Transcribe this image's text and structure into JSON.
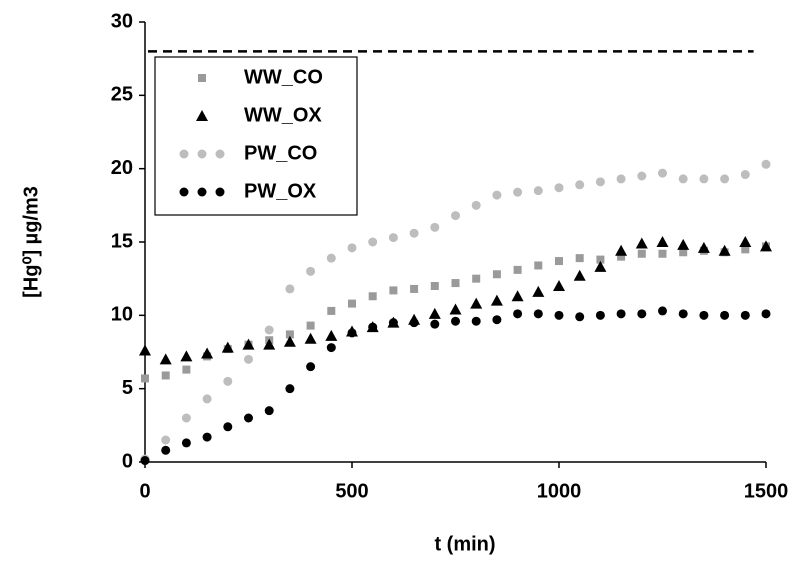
{
  "chart_data": {
    "type": "scatter",
    "x_label": "t (min)",
    "y_label": "[Hg⁰] µg/m3",
    "x": [
      0,
      50,
      100,
      150,
      200,
      250,
      300,
      350,
      400,
      450,
      500,
      550,
      600,
      650,
      700,
      750,
      800,
      850,
      900,
      950,
      1000,
      1050,
      1100,
      1150,
      1200,
      1250,
      1300,
      1350,
      1400,
      1450,
      1500
    ],
    "series": [
      {
        "name": "WW_CO",
        "color": "#9a9a9a",
        "marker": "square",
        "values": [
          5.7,
          5.9,
          6.3,
          7.2,
          7.7,
          8.0,
          8.3,
          8.7,
          9.3,
          10.3,
          10.8,
          11.3,
          11.7,
          11.8,
          12.0,
          12.2,
          12.5,
          12.8,
          13.1,
          13.4,
          13.7,
          13.9,
          13.8,
          14.0,
          14.2,
          14.2,
          14.3,
          14.4,
          14.3,
          14.5,
          14.7
        ]
      },
      {
        "name": "WW_OX",
        "color": "#000000",
        "marker": "triangle",
        "values": [
          7.6,
          7.0,
          7.2,
          7.4,
          7.8,
          8.0,
          8.0,
          8.2,
          8.4,
          8.6,
          8.9,
          9.2,
          9.5,
          9.7,
          10.1,
          10.4,
          10.8,
          11.0,
          11.3,
          11.6,
          12.0,
          12.7,
          13.3,
          14.4,
          14.9,
          15.0,
          14.8,
          14.6,
          14.4,
          15.0,
          14.7
        ]
      },
      {
        "name": "PW_CO",
        "color": "#bdbdbd",
        "marker": "circle",
        "values": [
          0.2,
          1.5,
          3.0,
          4.3,
          5.5,
          7.0,
          9.0,
          11.8,
          13.0,
          13.9,
          14.6,
          15.0,
          15.3,
          15.6,
          16.0,
          16.8,
          17.5,
          18.2,
          18.4,
          18.5,
          18.7,
          18.9,
          19.1,
          19.3,
          19.5,
          19.7,
          19.3,
          19.3,
          19.3,
          19.6,
          20.3
        ]
      },
      {
        "name": "PW_OX",
        "color": "#000000",
        "marker": "circle",
        "values": [
          0.1,
          0.8,
          1.3,
          1.7,
          2.4,
          3.0,
          3.5,
          5.0,
          6.5,
          7.8,
          8.8,
          9.2,
          9.5,
          9.5,
          9.4,
          9.6,
          9.6,
          9.7,
          10.1,
          10.1,
          10.0,
          9.9,
          10.0,
          10.1,
          10.1,
          10.3,
          10.1,
          10.0,
          10.0,
          10.0,
          10.1
        ]
      }
    ],
    "reference_line": {
      "y": 28,
      "x": [
        0,
        1470
      ],
      "color": "#000000",
      "dashed": true
    },
    "xlim": [
      0,
      1500
    ],
    "xticks": [
      0,
      500,
      1000,
      1500
    ],
    "ylim": [
      0,
      30
    ],
    "yticks": [
      0,
      5,
      10,
      15,
      20,
      25,
      30
    ],
    "grid": false
  }
}
